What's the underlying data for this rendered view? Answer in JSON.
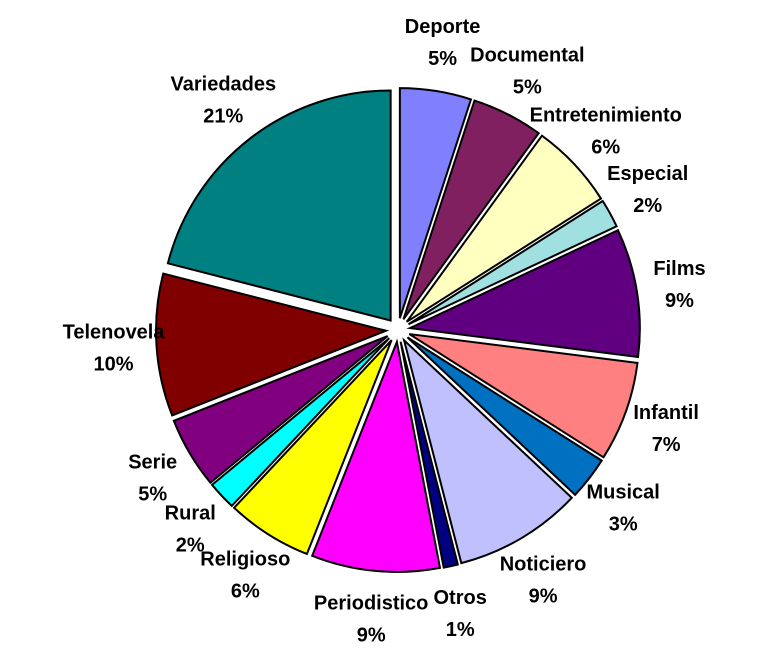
{
  "chart_data": {
    "type": "pie",
    "categories": [
      "Deporte",
      "Documental",
      "Entretenimiento",
      "Especial",
      "Films",
      "Infantil",
      "Musical",
      "Noticiero",
      "Otros",
      "Periodistico",
      "Religioso",
      "Rural",
      "Serie",
      "Telenovela",
      "Variedades"
    ],
    "values": [
      5,
      5,
      6,
      2,
      9,
      7,
      3,
      9,
      1,
      9,
      6,
      2,
      5,
      10,
      21
    ],
    "value_labels": [
      "5%",
      "5%",
      "6%",
      "2%",
      "9%",
      "7%",
      "3%",
      "9%",
      "1%",
      "9%",
      "6%",
      "2%",
      "5%",
      "10%",
      "21%"
    ],
    "colors": [
      "#8080ff",
      "#802060",
      "#ffffc0",
      "#a0e0e0",
      "#600080",
      "#ff8080",
      "#0070c0",
      "#c0c0ff",
      "#000080",
      "#ff00ff",
      "#ffff00",
      "#00ffff",
      "#800080",
      "#800000",
      "#008080"
    ]
  }
}
